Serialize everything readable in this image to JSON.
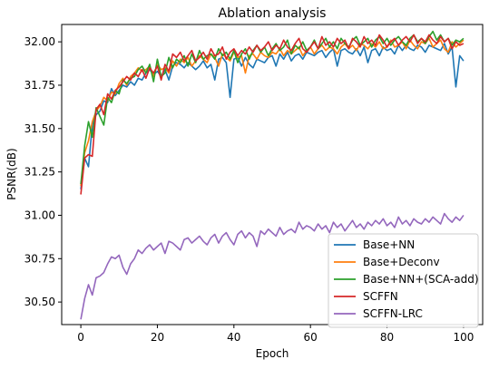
{
  "chart_data": {
    "type": "line",
    "title": "Ablation analysis",
    "xlabel": "Epoch",
    "ylabel": "PSNR(dB)",
    "xlim": [
      -5,
      105
    ],
    "ylim": [
      30.37,
      32.1
    ],
    "xticks": [
      0,
      20,
      40,
      60,
      80,
      100
    ],
    "yticks": [
      30.5,
      30.75,
      31.0,
      31.25,
      31.5,
      31.75,
      32.0
    ],
    "ytick_labels": [
      "30.50",
      "30.75",
      "31.00",
      "31.25",
      "31.50",
      "31.75",
      "32.00"
    ],
    "grid": false,
    "legend_position": "lower-right",
    "series": [
      {
        "name": "Base+NN",
        "color": "#1f77b4",
        "values": [
          31.15,
          31.33,
          31.28,
          31.52,
          31.58,
          31.6,
          31.66,
          31.65,
          31.73,
          31.69,
          31.72,
          31.75,
          31.74,
          31.77,
          31.75,
          31.79,
          31.78,
          31.82,
          31.84,
          31.81,
          31.83,
          31.8,
          31.84,
          31.78,
          31.86,
          31.88,
          31.87,
          31.85,
          31.88,
          31.86,
          31.84,
          31.86,
          31.89,
          31.85,
          31.87,
          31.78,
          31.9,
          31.91,
          31.88,
          31.68,
          31.9,
          31.91,
          31.86,
          31.91,
          31.87,
          31.85,
          31.9,
          31.89,
          31.88,
          31.91,
          31.92,
          31.86,
          31.93,
          31.9,
          31.94,
          31.89,
          31.92,
          31.93,
          31.9,
          31.94,
          31.93,
          31.92,
          31.94,
          31.95,
          31.91,
          31.94,
          31.96,
          31.86,
          31.95,
          31.96,
          31.94,
          31.93,
          31.96,
          31.92,
          31.97,
          31.88,
          31.95,
          31.96,
          31.92,
          31.97,
          31.95,
          31.96,
          31.93,
          31.98,
          31.95,
          31.98,
          31.96,
          31.95,
          31.98,
          31.97,
          31.94,
          31.98,
          31.97,
          31.96,
          31.95,
          31.99,
          31.93,
          31.97,
          31.74,
          31.92,
          31.89
        ]
      },
      {
        "name": "Base+Deconv",
        "color": "#ff7f0e",
        "values": [
          31.17,
          31.36,
          31.43,
          31.54,
          31.6,
          31.63,
          31.68,
          31.66,
          31.71,
          31.7,
          31.76,
          31.79,
          31.75,
          31.8,
          31.82,
          31.85,
          31.83,
          31.84,
          31.86,
          31.8,
          31.87,
          31.84,
          31.85,
          31.82,
          31.89,
          31.86,
          31.9,
          31.88,
          31.91,
          31.86,
          31.89,
          31.92,
          31.9,
          31.88,
          31.93,
          31.91,
          31.86,
          31.93,
          31.91,
          31.89,
          31.94,
          31.91,
          31.92,
          31.82,
          31.92,
          31.93,
          31.9,
          31.94,
          31.92,
          31.91,
          31.94,
          31.93,
          31.96,
          31.92,
          31.95,
          31.93,
          31.95,
          31.97,
          31.92,
          31.95,
          31.97,
          31.93,
          31.96,
          31.98,
          31.95,
          31.97,
          31.96,
          31.93,
          31.97,
          31.99,
          31.96,
          31.98,
          31.95,
          31.99,
          31.98,
          31.96,
          31.99,
          31.97,
          32.0,
          31.96,
          31.97,
          32.01,
          31.97,
          31.98,
          32.0,
          31.96,
          32.01,
          31.98,
          31.96,
          32.0,
          31.99,
          32.02,
          31.97,
          31.99,
          32.01,
          31.96,
          31.94,
          32.0,
          31.97,
          31.99,
          32.01
        ]
      },
      {
        "name": "Base+NN+(SCA-add)",
        "color": "#2ca02c",
        "values": [
          31.18,
          31.4,
          31.54,
          31.45,
          31.62,
          31.57,
          31.52,
          31.68,
          31.65,
          31.72,
          31.7,
          31.78,
          31.76,
          31.79,
          31.8,
          31.84,
          31.86,
          31.82,
          31.87,
          31.77,
          31.9,
          31.8,
          31.82,
          31.91,
          31.85,
          31.9,
          31.88,
          31.92,
          31.86,
          31.93,
          31.88,
          31.95,
          31.9,
          31.92,
          31.93,
          31.9,
          31.96,
          31.92,
          31.94,
          31.9,
          31.95,
          31.88,
          31.93,
          31.96,
          31.9,
          31.95,
          31.98,
          31.94,
          31.97,
          31.92,
          31.96,
          31.99,
          31.95,
          31.97,
          32.01,
          31.93,
          31.98,
          31.96,
          32.0,
          31.95,
          31.97,
          32.01,
          31.96,
          31.99,
          32.02,
          31.97,
          32.0,
          31.96,
          32.02,
          31.99,
          31.97,
          32.01,
          32.03,
          31.98,
          32.0,
          32.02,
          31.97,
          32.01,
          32.03,
          31.99,
          32.02,
          31.98,
          32.01,
          32.03,
          32.0,
          31.98,
          32.02,
          32.04,
          32.0,
          32.02,
          31.99,
          32.03,
          32.06,
          32.01,
          32.04,
          32.0,
          32.02,
          31.98,
          32.01,
          32.0,
          32.02
        ]
      },
      {
        "name": "SCFFN",
        "color": "#d62728",
        "values": [
          31.12,
          31.33,
          31.35,
          31.34,
          31.61,
          31.64,
          31.58,
          31.7,
          31.67,
          31.72,
          31.74,
          31.77,
          31.8,
          31.78,
          31.82,
          31.8,
          31.84,
          31.79,
          31.85,
          31.82,
          31.86,
          31.78,
          31.87,
          31.83,
          31.93,
          31.91,
          31.94,
          31.89,
          31.92,
          31.95,
          31.89,
          31.91,
          31.94,
          31.9,
          31.96,
          31.92,
          31.93,
          31.97,
          31.9,
          31.94,
          31.96,
          31.92,
          31.95,
          31.93,
          31.97,
          31.94,
          31.98,
          31.95,
          31.97,
          32.0,
          31.95,
          31.98,
          31.96,
          32.01,
          31.97,
          31.95,
          31.99,
          32.02,
          31.96,
          31.94,
          31.97,
          32.0,
          31.96,
          32.03,
          31.98,
          32.0,
          31.97,
          32.02,
          31.99,
          32.01,
          31.96,
          32.02,
          32.0,
          31.97,
          32.03,
          31.99,
          32.01,
          31.98,
          32.04,
          32.01,
          31.97,
          32.0,
          32.02,
          31.98,
          32.01,
          32.03,
          32.0,
          32.04,
          31.99,
          32.02,
          32.0,
          32.04,
          32.01,
          31.99,
          32.03,
          32.0,
          32.02,
          31.96,
          32.0,
          31.98,
          31.99
        ]
      },
      {
        "name": "SCFFN-LRC",
        "color": "#9467bd",
        "values": [
          30.4,
          30.52,
          30.6,
          30.54,
          30.64,
          30.65,
          30.67,
          30.72,
          30.76,
          30.75,
          30.77,
          30.7,
          30.66,
          30.72,
          30.75,
          30.8,
          30.78,
          30.81,
          30.83,
          30.8,
          30.82,
          30.84,
          30.78,
          30.85,
          30.84,
          30.82,
          30.8,
          30.86,
          30.87,
          30.84,
          30.86,
          30.88,
          30.85,
          30.83,
          30.87,
          30.89,
          30.84,
          30.88,
          30.9,
          30.86,
          30.83,
          30.89,
          30.91,
          30.87,
          30.9,
          30.88,
          30.82,
          30.91,
          30.89,
          30.92,
          30.9,
          30.88,
          30.93,
          30.89,
          30.91,
          30.92,
          30.9,
          30.96,
          30.92,
          30.94,
          30.93,
          30.91,
          30.95,
          30.92,
          30.94,
          30.9,
          30.96,
          30.93,
          30.95,
          30.91,
          30.94,
          30.97,
          30.93,
          30.95,
          30.92,
          30.96,
          30.94,
          30.97,
          30.95,
          30.98,
          30.94,
          30.96,
          30.93,
          30.99,
          30.95,
          30.97,
          30.94,
          30.98,
          30.96,
          30.95,
          30.98,
          30.96,
          30.99,
          30.97,
          30.95,
          31.01,
          30.98,
          30.96,
          30.99,
          30.97,
          31.0
        ]
      }
    ]
  }
}
